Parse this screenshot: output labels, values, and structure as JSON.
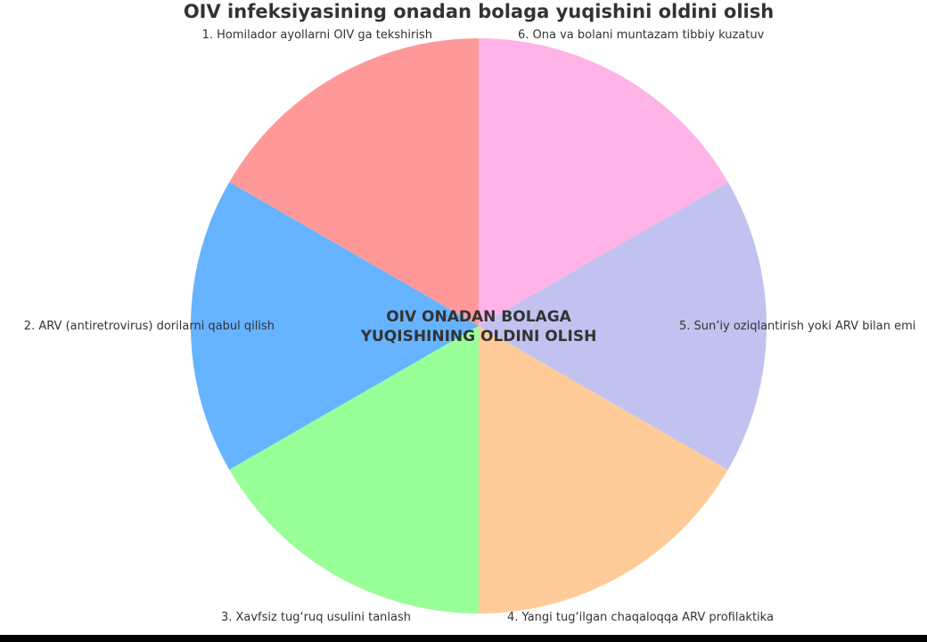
{
  "chart_data": {
    "type": "pie",
    "title": "OIV infeksiyasining onadan bolaga yuqishini oldini olish",
    "center_text": [
      "OIV ONADAN BOLAGA",
      "YUQISHINING OLDINI OLISH"
    ],
    "start_angle": 90,
    "direction": "counterclockwise",
    "categories": [
      "1. Homilador ayollarni OIV ga tekshirish",
      "2. ARV (antiretrovirus) dorilarni qabul qilish",
      "3. Xavfsiz tug‘ruq usulini tanlash",
      "4. Yangi tug‘ilgan chaqaloqqa ARV profilaktika",
      "5. Sun’iy oziqlantirish yoki ARV bilan emi",
      "6. Ona va bolani muntazam tibbiy kuzatuv"
    ],
    "values": [
      1,
      1,
      1,
      1,
      1,
      1
    ],
    "colors": [
      "#ff9999",
      "#66b3ff",
      "#99ff99",
      "#ffcc99",
      "#c2c2f0",
      "#ffb3e6"
    ]
  }
}
